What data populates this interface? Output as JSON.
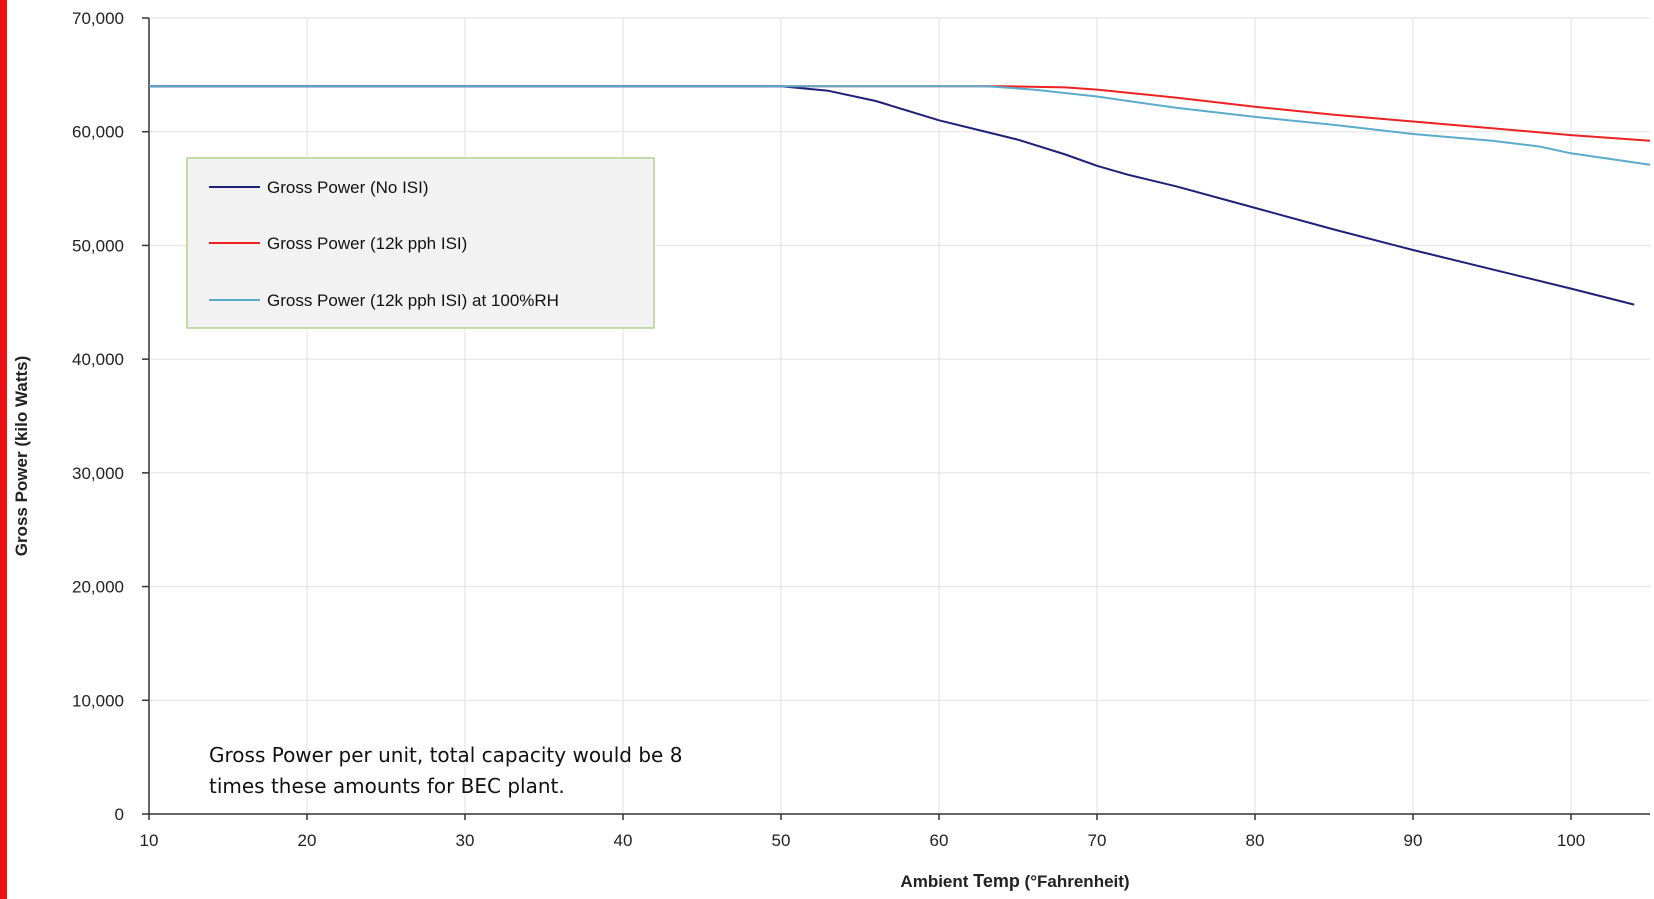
{
  "chart_data": {
    "type": "line",
    "title": "",
    "xlabel_parts": [
      "Ambient ",
      "Temp",
      " (°Fahrenheit)"
    ],
    "ylabel": "Gross Power (kilo Watts)",
    "xlim": [
      10,
      105
    ],
    "ylim": [
      0,
      70000
    ],
    "x_ticks": [
      10,
      20,
      30,
      40,
      50,
      60,
      70,
      80,
      90,
      100
    ],
    "x_tick_labels": [
      "10",
      "20",
      "30",
      "40",
      "50",
      "60",
      "70",
      "80",
      "90",
      "100"
    ],
    "y_ticks": [
      0,
      10000,
      20000,
      30000,
      40000,
      50000,
      60000,
      70000
    ],
    "y_tick_labels": [
      "0",
      "10,000",
      "20,000",
      "30,000",
      "40,000",
      "50,000",
      "60,000",
      "70,000"
    ],
    "grid": true,
    "legend_position": "top-left",
    "series": [
      {
        "name": "Gross Power (No ISI)",
        "color": "#1f1f7a",
        "x": [
          10,
          20,
          30,
          40,
          50,
          53,
          56,
          60,
          65,
          68,
          70,
          72,
          75,
          80,
          85,
          90,
          95,
          100,
          104
        ],
        "y": [
          64000,
          64000,
          64000,
          64000,
          64000,
          63600,
          62700,
          61000,
          59300,
          58000,
          57000,
          56200,
          55200,
          53300,
          51400,
          49600,
          47900,
          46200,
          44800
        ]
      },
      {
        "name": "Gross Power (12k pph ISI)",
        "color": "#ee2222",
        "x": [
          10,
          20,
          30,
          40,
          50,
          60,
          64,
          68,
          70,
          75,
          80,
          85,
          90,
          95,
          100,
          105
        ],
        "y": [
          64000,
          64000,
          64000,
          64000,
          64000,
          64000,
          64000,
          63900,
          63700,
          63000,
          62200,
          61500,
          60900,
          60300,
          59700,
          59200
        ]
      },
      {
        "name": "Gross Power (12k pph ISI) at 100%RH",
        "color": "#5aaccc",
        "x": [
          10,
          20,
          30,
          40,
          50,
          60,
          63,
          66,
          70,
          75,
          80,
          85,
          90,
          95,
          98,
          100,
          105
        ],
        "y": [
          64000,
          64000,
          64000,
          64000,
          64000,
          64000,
          64000,
          63700,
          63100,
          62100,
          61300,
          60600,
          59800,
          59200,
          58700,
          58100,
          57100
        ]
      }
    ],
    "annotation": [
      "Gross Power per unit, total capacity would be 8",
      "times these amounts for BEC plant."
    ]
  },
  "colors": {
    "left_border": "#ee1111",
    "legend_bg": "#f2f2f2",
    "legend_border": "#b5cf8f",
    "grid": "#e2e2e2",
    "axis": "#333333"
  }
}
